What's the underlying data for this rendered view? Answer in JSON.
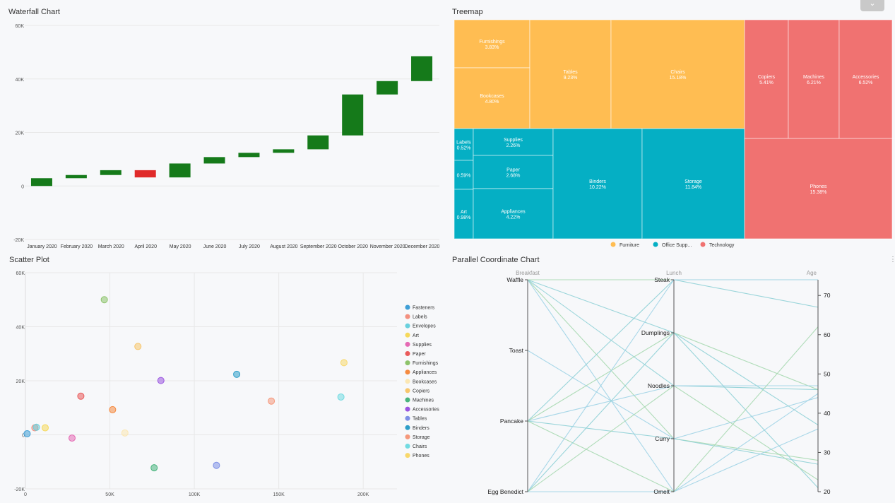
{
  "panels": {
    "waterfall_title": "Waterfall Chart",
    "treemap_title": "Treemap",
    "scatter_title": "Scatter Plot",
    "parallel_title": "Parallel Coordinate Chart"
  },
  "ui": {
    "collapse_icon": "chevron-down-icon",
    "collapse_glyph": "⌄",
    "more_glyph": "⋮"
  },
  "chart_data": [
    {
      "type": "bar",
      "variant": "waterfall",
      "title": "Waterfall Chart",
      "categories": [
        "January 2020",
        "February 2020",
        "March 2020",
        "April 2020",
        "May 2020",
        "June 2020",
        "July 2020",
        "August 2020",
        "September 2020",
        "October 2020",
        "November 2020",
        "December 2020"
      ],
      "deltas": [
        2900,
        1200,
        1800,
        -2700,
        5200,
        2400,
        1600,
        1300,
        5200,
        15300,
        5000,
        9300
      ],
      "ylim": [
        -20000,
        60000
      ],
      "yticks": [
        -20000,
        0,
        20000,
        40000,
        60000
      ],
      "ytick_labels": [
        "-20K",
        "0",
        "20K",
        "40K",
        "60K"
      ],
      "colors": {
        "increase": "#157a1a",
        "decrease": "#e02a2a"
      },
      "grid": true
    },
    {
      "type": "treemap",
      "title": "Treemap",
      "groups": [
        {
          "name": "Furniture",
          "legend": "Furniture",
          "color": "#ffbd52",
          "items": [
            {
              "name": "Furnishings",
              "label": "3.83%",
              "value": 3.83
            },
            {
              "name": "Bookcases",
              "label": "4.80%",
              "value": 4.8
            },
            {
              "name": "Tables",
              "label": "9.23%",
              "value": 9.23
            },
            {
              "name": "Chairs",
              "label": "15.18%",
              "value": 15.18
            }
          ]
        },
        {
          "name": "Office Supplies",
          "legend": "Office Supp...",
          "color": "#05afc4",
          "items": [
            {
              "name": "Labels",
              "label": "0.52%",
              "value": 0.52
            },
            {
              "name": "",
              "label": "0.59%",
              "value": 0.59
            },
            {
              "name": "Art",
              "label": "0.98%",
              "value": 0.98
            },
            {
              "name": "Supplies",
              "label": "2.26%",
              "value": 2.26
            },
            {
              "name": "Paper",
              "label": "2.68%",
              "value": 2.68
            },
            {
              "name": "Appliances",
              "label": "4.22%",
              "value": 4.22
            },
            {
              "name": "Binders",
              "label": "10.22%",
              "value": 10.22
            },
            {
              "name": "Storage",
              "label": "11.84%",
              "value": 11.84
            }
          ]
        },
        {
          "name": "Technology",
          "legend": "Technology",
          "color": "#f07271",
          "items": [
            {
              "name": "Copiers",
              "label": "5.41%",
              "value": 5.41
            },
            {
              "name": "Machines",
              "label": "6.21%",
              "value": 6.21
            },
            {
              "name": "Accessories",
              "label": "6.52%",
              "value": 6.52
            },
            {
              "name": "Phones",
              "label": "15.38%",
              "value": 15.38
            }
          ]
        }
      ]
    },
    {
      "type": "scatter",
      "title": "Scatter Plot",
      "xlim": [
        0,
        220000
      ],
      "ylim": [
        -20000,
        60000
      ],
      "xticks": [
        0,
        50000,
        100000,
        150000,
        200000
      ],
      "xtick_labels": [
        "0",
        "50K",
        "100K",
        "150K",
        "200K"
      ],
      "yticks": [
        -20000,
        0,
        20000,
        40000,
        60000
      ],
      "ytick_labels": [
        "-20K",
        "0",
        "20K",
        "40K",
        "60K"
      ],
      "series": [
        {
          "name": "Fasteners",
          "color": "#3f9fd6",
          "x": 1000,
          "y": 400
        },
        {
          "name": "Labels",
          "color": "#f3907f",
          "x": 5600,
          "y": 2600
        },
        {
          "name": "Envelopes",
          "color": "#69d0dd",
          "x": 6500,
          "y": 2800
        },
        {
          "name": "Art",
          "color": "#f6d95b",
          "x": 11700,
          "y": 2600
        },
        {
          "name": "Supplies",
          "color": "#e56ab4",
          "x": 27600,
          "y": -1200
        },
        {
          "name": "Paper",
          "color": "#ea5a5a",
          "x": 32800,
          "y": 14300
        },
        {
          "name": "Furnishings",
          "color": "#8dc36a",
          "x": 46700,
          "y": 50000
        },
        {
          "name": "Appliances",
          "color": "#f58a3f",
          "x": 51600,
          "y": 9300
        },
        {
          "name": "Bookcases",
          "color": "#fbe7b3",
          "x": 58900,
          "y": 700
        },
        {
          "name": "Copiers",
          "color": "#f7c66c",
          "x": 66600,
          "y": 32700
        },
        {
          "name": "Machines",
          "color": "#49b47d",
          "x": 76200,
          "y": -12200
        },
        {
          "name": "Accessories",
          "color": "#9a55e0",
          "x": 80200,
          "y": 20100
        },
        {
          "name": "Tables",
          "color": "#7e90e6",
          "x": 113100,
          "y": -11300
        },
        {
          "name": "Binders",
          "color": "#2d9ec8",
          "x": 125100,
          "y": 22400
        },
        {
          "name": "Storage",
          "color": "#f5987b",
          "x": 145600,
          "y": 12500
        },
        {
          "name": "Chairs",
          "color": "#72dbe1",
          "x": 186800,
          "y": 14000
        },
        {
          "name": "Phones",
          "color": "#f8d86b",
          "x": 188600,
          "y": 26700
        }
      ]
    },
    {
      "type": "parallel",
      "title": "Parallel Coordinate Chart",
      "axes": [
        {
          "name": "Breakfast",
          "kind": "category",
          "values": [
            "Waffle",
            "Toast",
            "Pancake",
            "Egg Benedict"
          ]
        },
        {
          "name": "Lunch",
          "kind": "category",
          "values": [
            "Steak",
            "Dumplings",
            "Noodles",
            "Curry",
            "Omelt"
          ]
        },
        {
          "name": "Age",
          "kind": "number",
          "range": [
            20,
            74
          ],
          "ticks": [
            20,
            30,
            40,
            50,
            60,
            70
          ]
        }
      ],
      "records": [
        [
          "Waffle",
          "Noodles",
          46
        ],
        [
          "Waffle",
          "Curry",
          28
        ],
        [
          "Waffle",
          "Omelt",
          45
        ],
        [
          "Waffle",
          "Dumplings",
          21
        ],
        [
          "Waffle",
          "Steak",
          74
        ],
        [
          "Toast",
          "Curry",
          44
        ],
        [
          "Pancake",
          "Steak",
          67
        ],
        [
          "Pancake",
          "Dumplings",
          46
        ],
        [
          "Pancake",
          "Noodles",
          47
        ],
        [
          "Pancake",
          "Curry",
          27
        ],
        [
          "Pancake",
          "Omelt",
          62
        ],
        [
          "Egg Benedict",
          "Steak",
          74
        ],
        [
          "Egg Benedict",
          "Dumplings",
          37
        ],
        [
          "Egg Benedict",
          "Noodles",
          23
        ],
        [
          "Egg Benedict",
          "Omelt",
          36
        ]
      ],
      "line_colors": [
        "#8fd0d6",
        "#a6d8b0",
        "#9fd3e6"
      ]
    }
  ]
}
